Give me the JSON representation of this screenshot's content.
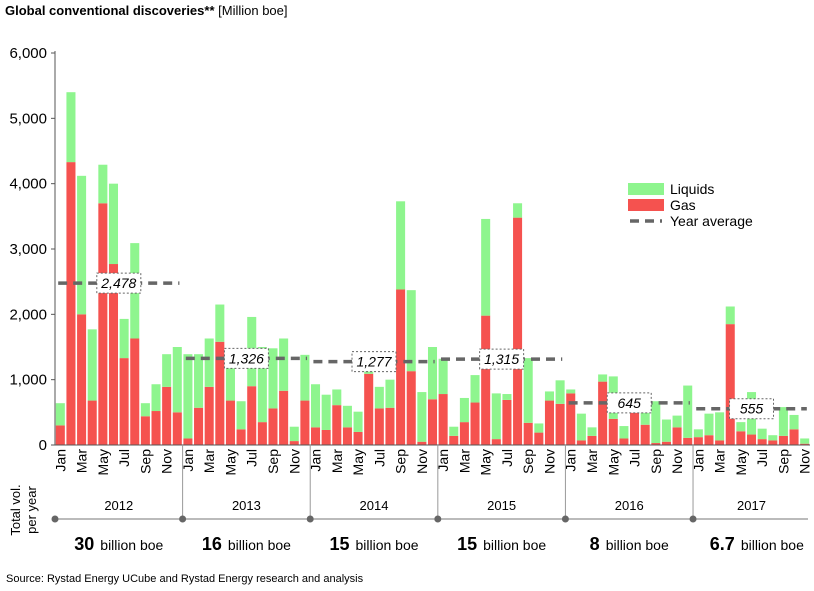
{
  "title": {
    "main": "Global conventional discoveries**",
    "unit": " [Million boe]"
  },
  "source": "Source: Rystad Energy UCube and Rystad Energy research and analysis",
  "colors": {
    "liquids": "#8ef58e",
    "gas": "#f5524f",
    "average": "#666666"
  },
  "chart_data": {
    "type": "bar",
    "stacked": true,
    "title": "Global conventional discoveries** [Million boe]",
    "ylim": [
      0,
      6000
    ],
    "yticks": [
      "0",
      "1,000",
      "2,000",
      "3,000",
      "4,000",
      "5,000",
      "6,000"
    ],
    "ytick_values": [
      0,
      1000,
      2000,
      3000,
      4000,
      5000,
      6000
    ],
    "month_labels": [
      "Jan",
      "Mar",
      "May",
      "Jul",
      "Sep",
      "Nov"
    ],
    "years": [
      "2012",
      "2013",
      "2014",
      "2015",
      "2016",
      "2017"
    ],
    "series": [
      {
        "name": "Gas",
        "values": [
          300,
          4330,
          2000,
          680,
          3700,
          2770,
          1330,
          1630,
          440,
          520,
          890,
          500,
          100,
          570,
          890,
          1580,
          680,
          240,
          900,
          350,
          560,
          830,
          60,
          680,
          270,
          230,
          610,
          270,
          200,
          1090,
          560,
          570,
          2380,
          1130,
          50,
          700,
          780,
          140,
          350,
          650,
          1980,
          90,
          690,
          3480,
          340,
          190,
          680,
          630,
          790,
          70,
          140,
          970,
          400,
          100,
          510,
          310,
          30,
          50,
          270,
          110,
          120,
          150,
          70,
          1850,
          210,
          160,
          90,
          70,
          140,
          240,
          20
        ]
      },
      {
        "name": "Liquids",
        "values": [
          340,
          1070,
          2120,
          1090,
          590,
          1230,
          600,
          1460,
          200,
          410,
          500,
          1000,
          1290,
          820,
          740,
          570,
          500,
          430,
          1060,
          1150,
          920,
          800,
          220,
          700,
          660,
          540,
          240,
          330,
          310,
          60,
          330,
          430,
          1350,
          1240,
          760,
          800,
          540,
          140,
          370,
          420,
          1480,
          700,
          90,
          220,
          990,
          140,
          140,
          360,
          60,
          410,
          130,
          110,
          650,
          190,
          0,
          220,
          640,
          340,
          180,
          800,
          120,
          330,
          430,
          270,
          140,
          650,
          160,
          80,
          440,
          220,
          80
        ]
      }
    ],
    "year_average": {
      "name": "Year average",
      "labels": [
        "2,478",
        "1,326",
        "1,277",
        "1,315",
        "645",
        "555"
      ],
      "values": [
        2478,
        1326,
        1277,
        1315,
        645,
        555
      ]
    },
    "legend": {
      "liquids": "Liquids",
      "gas": "Gas",
      "average": "Year average",
      "position": "right"
    }
  },
  "totals": {
    "label_line1": "Total vol.",
    "label_line2": "per year",
    "items": [
      {
        "value": "30",
        "unit": "billion boe"
      },
      {
        "value": "16",
        "unit": "billion boe"
      },
      {
        "value": "15",
        "unit": "billion boe"
      },
      {
        "value": "15",
        "unit": "billion boe"
      },
      {
        "value": "8",
        "unit": "billion boe"
      },
      {
        "value": "6.7",
        "unit": "billion boe"
      }
    ]
  }
}
